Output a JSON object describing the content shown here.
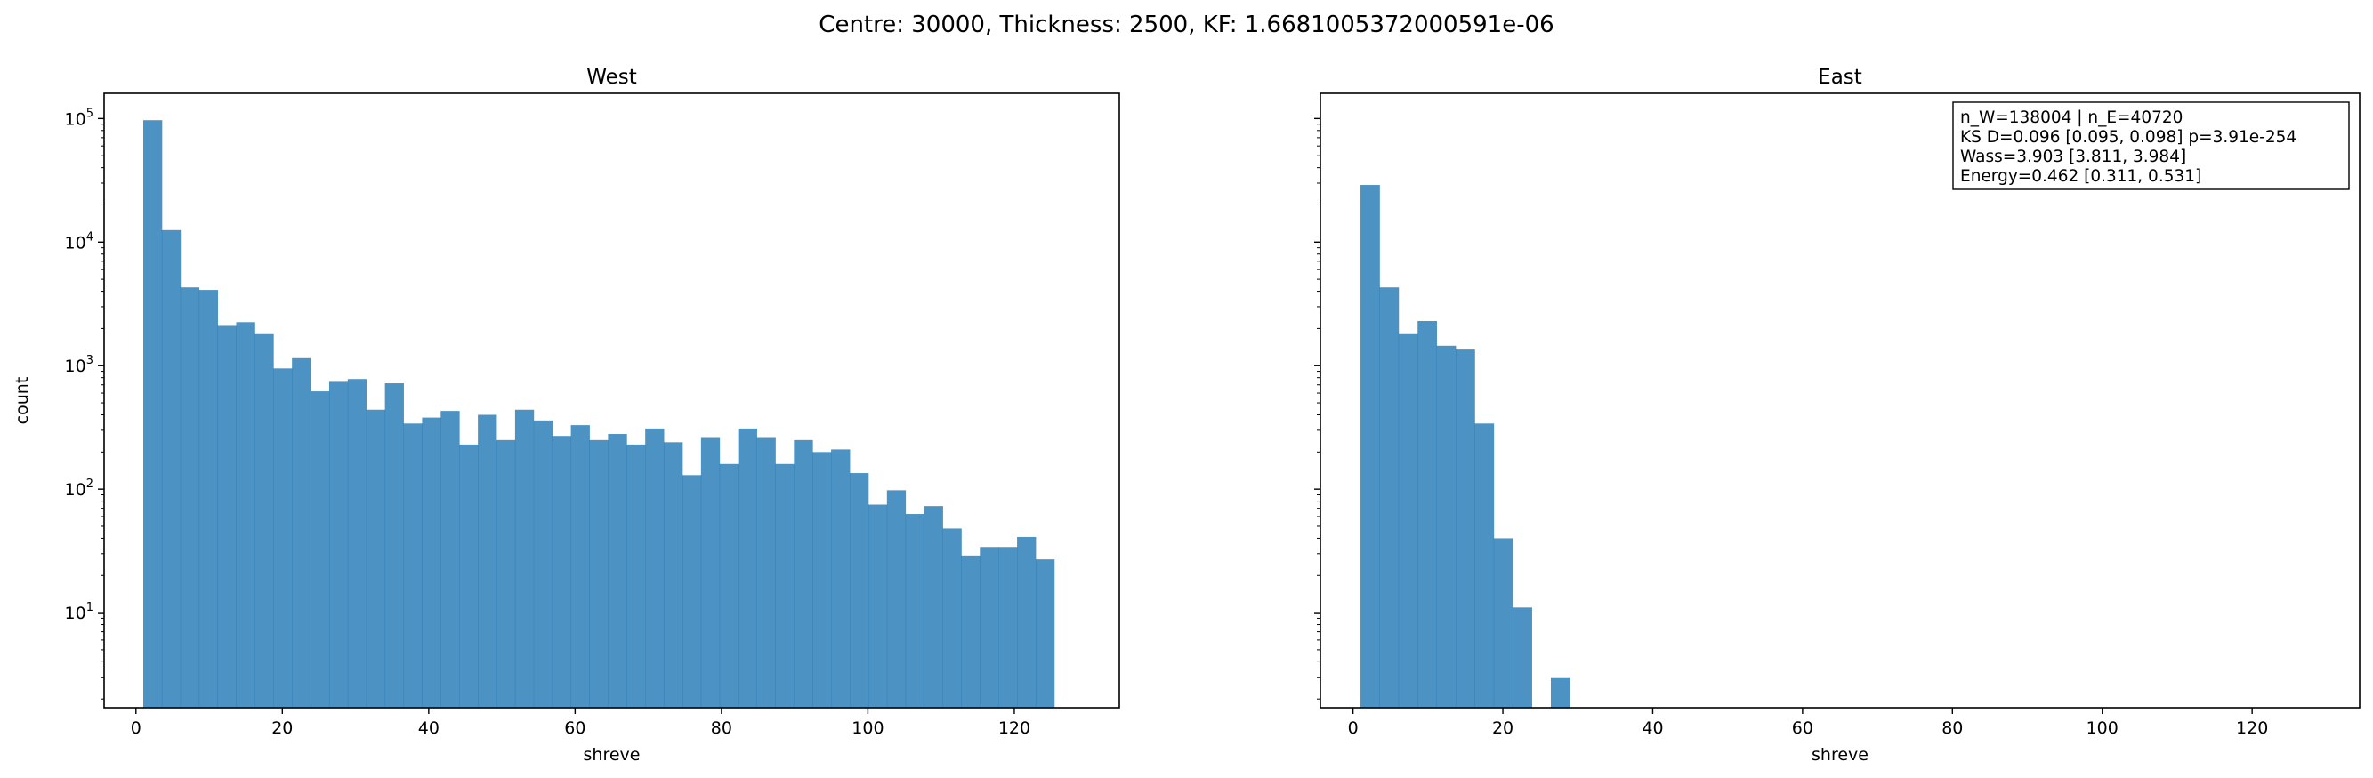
{
  "figure": {
    "suptitle": "Centre: 30000, Thickness: 2500, KF: 1.6681005372000591e-06"
  },
  "colors": {
    "bar": "#1f77b4",
    "bar_opacity": 0.8,
    "axis": "#000000",
    "background": "#ffffff"
  },
  "chart_data": [
    {
      "type": "bar",
      "title": "West",
      "xlabel": "shreve",
      "ylabel": "count",
      "xscale": "linear",
      "yscale": "log",
      "xlim": [
        -4.35,
        134.35
      ],
      "ylim": [
        1.7,
        160000
      ],
      "xticks": [
        0,
        20,
        40,
        60,
        80,
        100,
        120
      ],
      "yticks": [
        10,
        100,
        1000,
        10000,
        100000
      ],
      "ytick_labels": [
        {
          "base": "10",
          "exp": "1"
        },
        {
          "base": "10",
          "exp": "2"
        },
        {
          "base": "10",
          "exp": "3"
        },
        {
          "base": "10",
          "exp": "4"
        },
        {
          "base": "10",
          "exp": "5"
        }
      ],
      "grid": false,
      "bin_edges": [
        1,
        3.54,
        6.08,
        8.62,
        11.16,
        13.7,
        16.24,
        18.78,
        21.32,
        23.86,
        26.4,
        28.94,
        31.48,
        34.02,
        36.56,
        39.1,
        41.64,
        44.18,
        46.72,
        49.26,
        51.8,
        54.34,
        56.88,
        59.42,
        61.96,
        64.5,
        67.04,
        69.58,
        72.12,
        74.66,
        77.2,
        79.74,
        82.28,
        84.82,
        87.36,
        89.9,
        92.44,
        94.98,
        97.52,
        100.06,
        102.6,
        105.14,
        107.68,
        110.22,
        112.76,
        115.3,
        117.84,
        120.38,
        122.92,
        125.46,
        128
      ],
      "values": [
        97000,
        12500,
        4300,
        4100,
        2100,
        2250,
        1800,
        950,
        1150,
        620,
        740,
        780,
        440,
        720,
        340,
        380,
        430,
        230,
        400,
        250,
        440,
        360,
        270,
        330,
        250,
        280,
        230,
        310,
        240,
        130,
        260,
        160,
        310,
        260,
        160,
        250,
        200,
        210,
        135,
        75,
        98,
        63,
        73,
        48,
        29,
        34,
        34,
        41,
        27,
        0
      ]
    },
    {
      "type": "bar",
      "title": "East",
      "xlabel": "shreve",
      "ylabel": "",
      "xscale": "linear",
      "yscale": "log",
      "shared_y": true,
      "xlim": [
        -4.35,
        134.35
      ],
      "ylim": [
        1.7,
        160000
      ],
      "xticks": [
        0,
        20,
        40,
        60,
        80,
        100,
        120
      ],
      "grid": false,
      "bin_edges": [
        1,
        3.54,
        6.08,
        8.62,
        11.16,
        13.7,
        16.24,
        18.78,
        21.32,
        23.86,
        26.4,
        28.94,
        31.48,
        34.02,
        36.56,
        39.1,
        41.64,
        44.18,
        46.72,
        49.26,
        51.8,
        54.34,
        56.88,
        59.42,
        61.96,
        64.5,
        67.04,
        69.58,
        72.12,
        74.66,
        77.2,
        79.74,
        82.28,
        84.82,
        87.36,
        89.9,
        92.44,
        94.98,
        97.52,
        100.06,
        102.6,
        105.14,
        107.68,
        110.22,
        112.76,
        115.3,
        117.84,
        120.38,
        122.92,
        125.46,
        128
      ],
      "values": [
        29000,
        4300,
        1800,
        2300,
        1450,
        1350,
        340,
        40,
        11,
        0,
        3,
        0,
        0,
        0,
        0,
        0,
        0,
        0,
        0,
        0,
        0,
        0,
        0,
        0,
        0,
        0,
        0,
        0,
        0,
        0,
        0,
        0,
        0,
        0,
        0,
        0,
        0,
        0,
        0,
        0,
        0,
        0,
        0,
        0,
        0,
        0,
        0,
        0,
        0,
        0
      ],
      "annotation": {
        "lines": [
          "n_W=138004 | n_E=40720",
          "KS D=0.096 [0.095, 0.098]  p=3.91e-254",
          "Wass=3.903 [3.811, 3.984]",
          "Energy=0.462 [0.311, 0.531]"
        ],
        "placement": "top-right"
      }
    }
  ]
}
